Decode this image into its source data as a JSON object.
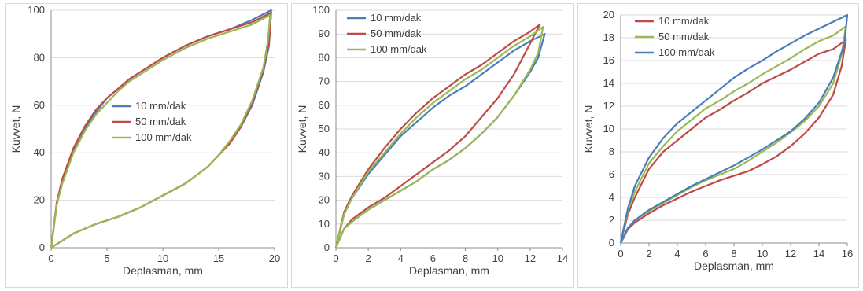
{
  "colors": {
    "10 mm/dak": "#4a7ebb",
    "50 mm/dak": "#be4b48",
    "100 mm/dak": "#98b954"
  },
  "chart_data": [
    {
      "type": "line",
      "xlabel": "Deplasman, mm",
      "ylabel": "Kuvvet, N",
      "xlim": [
        0,
        20
      ],
      "xticks": [
        0,
        5,
        10,
        15,
        20
      ],
      "ylim": [
        0,
        100
      ],
      "yticks": [
        0,
        20,
        40,
        60,
        80,
        100
      ],
      "grid": "horizontal",
      "legend_position": "center",
      "series": [
        {
          "name": "10 mm/dak",
          "color": "#4a7ebb",
          "x": [
            0,
            0.5,
            1,
            2,
            3,
            4,
            5,
            6,
            7,
            8,
            10,
            12,
            14,
            16,
            18,
            19.7,
            19.5,
            19,
            18,
            17,
            16,
            15,
            14,
            12,
            10,
            8,
            6,
            4,
            2,
            1,
            0
          ],
          "y": [
            0,
            18,
            28,
            41,
            50,
            57,
            63,
            67,
            71,
            74,
            80,
            85,
            89,
            92,
            96,
            100,
            85,
            74,
            60,
            51,
            44,
            39,
            34,
            27,
            22,
            17,
            13,
            10,
            6,
            3,
            0
          ]
        },
        {
          "name": "50 mm/dak",
          "color": "#be4b48",
          "x": [
            0,
            0.5,
            1,
            2,
            3,
            4,
            5,
            6,
            7,
            8,
            10,
            12,
            14,
            16,
            18,
            19.7,
            19.5,
            19,
            18,
            17,
            16,
            15,
            14,
            12,
            10,
            8,
            6,
            4,
            2,
            1,
            0
          ],
          "y": [
            0,
            19,
            29,
            42,
            51,
            58,
            63,
            67,
            71,
            74,
            80,
            85,
            89,
            92,
            95,
            99,
            86,
            75,
            61,
            51,
            44,
            39,
            34,
            27,
            22,
            17,
            13,
            10,
            6,
            3,
            0
          ]
        },
        {
          "name": "100 mm/dak",
          "color": "#98b954",
          "x": [
            0,
            0.5,
            1,
            2,
            3,
            4,
            5,
            6,
            7,
            8,
            10,
            12,
            14,
            16,
            18,
            19.6,
            19.4,
            19,
            18,
            17,
            16,
            15,
            14,
            12,
            10,
            8,
            6,
            4,
            2,
            1,
            0
          ],
          "y": [
            0,
            18,
            27,
            40,
            49,
            56,
            61,
            66,
            70,
            73,
            79,
            84,
            88,
            91,
            94,
            98,
            87,
            76,
            62,
            52,
            45,
            39,
            34,
            27,
            22,
            17,
            13,
            10,
            6,
            3,
            0
          ]
        }
      ]
    },
    {
      "type": "line",
      "xlabel": "Deplasman, mm",
      "ylabel": "Kuvvet, N",
      "xlim": [
        0,
        14
      ],
      "xticks": [
        0,
        2,
        4,
        6,
        8,
        10,
        12,
        14
      ],
      "ylim": [
        0,
        100
      ],
      "yticks": [
        0,
        10,
        20,
        30,
        40,
        50,
        60,
        70,
        80,
        90,
        100
      ],
      "grid": "horizontal",
      "legend_position": "top-left",
      "series": [
        {
          "name": "10 mm/dak",
          "color": "#4a7ebb",
          "x": [
            0,
            0.5,
            1,
            2,
            3,
            4,
            5,
            6,
            7,
            8,
            9,
            10,
            11,
            12,
            12.9,
            12.5,
            12,
            11,
            10,
            9,
            8,
            7,
            6,
            5,
            4,
            3,
            2,
            1,
            0.5,
            0
          ],
          "y": [
            0,
            14,
            21,
            31,
            39,
            47,
            53,
            59,
            64,
            68,
            73,
            78,
            83,
            87,
            90,
            80,
            74,
            64,
            55,
            48,
            42,
            37,
            33,
            28,
            24,
            20,
            16,
            11,
            8,
            0
          ]
        },
        {
          "name": "50 mm/dak",
          "color": "#be4b48",
          "x": [
            0,
            0.5,
            1,
            2,
            3,
            4,
            5,
            6,
            7,
            8,
            9,
            10,
            11,
            12,
            12.6,
            12.3,
            12,
            11,
            10,
            9,
            8,
            7,
            6,
            5,
            4,
            3,
            2,
            1,
            0.5,
            0
          ],
          "y": [
            0,
            15,
            22,
            33,
            42,
            50,
            57,
            63,
            68,
            73,
            77,
            82,
            87,
            91,
            94,
            90,
            86,
            73,
            63,
            55,
            47,
            41,
            36,
            31,
            26,
            21,
            17,
            12,
            8,
            0
          ]
        },
        {
          "name": "100 mm/dak",
          "color": "#98b954",
          "x": [
            0,
            0.5,
            1,
            2,
            3,
            4,
            5,
            6,
            7,
            8,
            9,
            10,
            11,
            12,
            12.8,
            12.5,
            12,
            11,
            10,
            9,
            8,
            7,
            6,
            5,
            4,
            3,
            2,
            1,
            0.5,
            0
          ],
          "y": [
            0,
            14,
            21,
            32,
            40,
            48,
            55,
            61,
            66,
            71,
            75,
            80,
            85,
            89,
            93,
            82,
            75,
            64,
            55,
            48,
            42,
            37,
            33,
            28,
            24,
            20,
            16,
            11,
            8,
            0
          ]
        }
      ]
    },
    {
      "type": "line",
      "xlabel": "Deplasman, mm",
      "ylabel": "Kuvvet, N",
      "xlim": [
        0,
        16
      ],
      "xticks": [
        0,
        2,
        4,
        6,
        8,
        10,
        12,
        14,
        16
      ],
      "ylim": [
        0,
        20
      ],
      "yticks": [
        0,
        2,
        4,
        6,
        8,
        10,
        12,
        14,
        16,
        18,
        20
      ],
      "grid": "horizontal",
      "legend_position": "top-left",
      "series": [
        {
          "name": "10 mm/dak",
          "color": "#be4b48",
          "x": [
            0,
            0.5,
            1,
            2,
            3,
            4,
            5,
            6,
            7,
            8,
            9,
            10,
            11,
            12,
            13,
            14,
            15,
            15.9,
            15.6,
            15,
            14,
            13,
            12,
            11,
            10,
            9,
            8,
            7,
            6,
            5,
            4,
            3,
            2,
            1,
            0.5,
            0
          ],
          "y": [
            0,
            2.5,
            4,
            6.5,
            8,
            9,
            10,
            11,
            11.7,
            12.5,
            13.2,
            14,
            14.6,
            15.2,
            15.9,
            16.6,
            17,
            17.8,
            15.5,
            13,
            11,
            9.6,
            8.5,
            7.6,
            6.9,
            6.3,
            5.9,
            5.5,
            5,
            4.5,
            3.9,
            3.3,
            2.6,
            1.8,
            1.2,
            0
          ]
        },
        {
          "name": "50 mm/dak",
          "color": "#98b954",
          "x": [
            0,
            0.5,
            1,
            2,
            3,
            4,
            5,
            6,
            7,
            8,
            9,
            10,
            11,
            12,
            13,
            14,
            15,
            15.9,
            15.6,
            15,
            14,
            13,
            12,
            11,
            10,
            9,
            8,
            7,
            6,
            5,
            4,
            3,
            2,
            1,
            0.5,
            0
          ],
          "y": [
            0,
            2.8,
            4.5,
            7,
            8.5,
            9.8,
            10.8,
            11.8,
            12.5,
            13.3,
            14,
            14.8,
            15.5,
            16.2,
            17,
            17.7,
            18.2,
            19,
            16.5,
            14,
            12,
            10.7,
            9.7,
            8.8,
            8,
            7.2,
            6.5,
            6,
            5.5,
            4.9,
            4.2,
            3.5,
            2.8,
            2,
            1.3,
            0
          ]
        },
        {
          "name": "100 mm/dak",
          "color": "#4a7ebb",
          "x": [
            0,
            0.5,
            1,
            2,
            3,
            4,
            5,
            6,
            7,
            8,
            9,
            10,
            11,
            12,
            13,
            14,
            15,
            16,
            15.8,
            15,
            14,
            13,
            12,
            11,
            10,
            9,
            8,
            7,
            6,
            5,
            4,
            3,
            2,
            1,
            0.5,
            0
          ],
          "y": [
            0,
            3,
            5,
            7.5,
            9.2,
            10.5,
            11.5,
            12.5,
            13.5,
            14.5,
            15.3,
            16,
            16.8,
            17.5,
            18.2,
            18.8,
            19.4,
            20,
            17.5,
            14.5,
            12.3,
            10.9,
            9.8,
            9,
            8.2,
            7.5,
            6.8,
            6.2,
            5.6,
            5,
            4.3,
            3.6,
            2.9,
            2,
            1.3,
            0
          ]
        }
      ]
    }
  ]
}
